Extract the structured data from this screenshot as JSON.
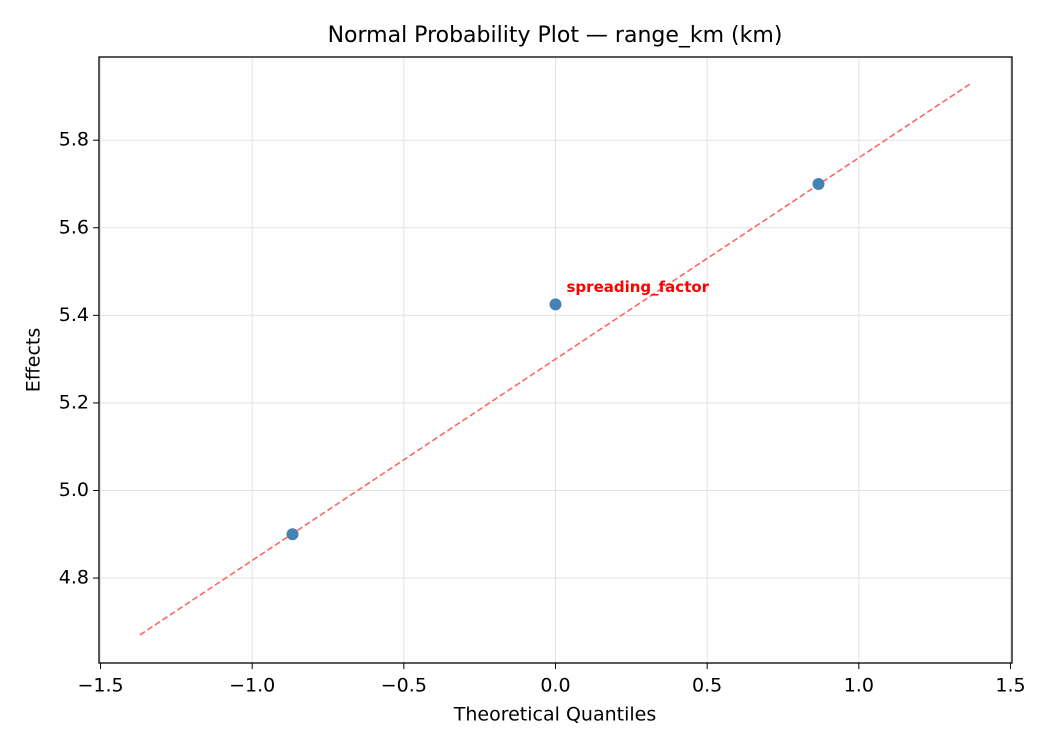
{
  "chart_data": {
    "type": "scatter",
    "title": "Normal Probability Plot — range_km (km)",
    "xlabel": "Theoretical Quantiles",
    "ylabel": "Effects",
    "x": [
      -0.867,
      0,
      0.867
    ],
    "values": [
      4.9,
      5.425,
      5.7
    ],
    "color": "#4682b4",
    "reference_line": {
      "x": [
        -1.37,
        1.37
      ],
      "values": [
        4.67,
        5.93
      ],
      "color": "#ff6666"
    },
    "annotation": {
      "text": "spreading_factor",
      "color": "#ff0000"
    },
    "xlim": [
      -1.505,
      1.505
    ],
    "ylim": [
      4.606,
      5.99
    ],
    "xticks": [
      {
        "value": -1.5,
        "label": "−1.5"
      },
      {
        "value": -1.0,
        "label": "−1.0"
      },
      {
        "value": -0.5,
        "label": "−0.5"
      },
      {
        "value": 0,
        "label": "0.0"
      },
      {
        "value": 0.5,
        "label": "0.5"
      },
      {
        "value": 1.0,
        "label": "1.0"
      },
      {
        "value": 1.5,
        "label": "1.5"
      }
    ],
    "yticks": [
      4.8,
      {
        "value": 5.0,
        "label": "5.0"
      },
      5.2,
      5.4,
      5.6,
      5.8
    ],
    "grid": true
  }
}
